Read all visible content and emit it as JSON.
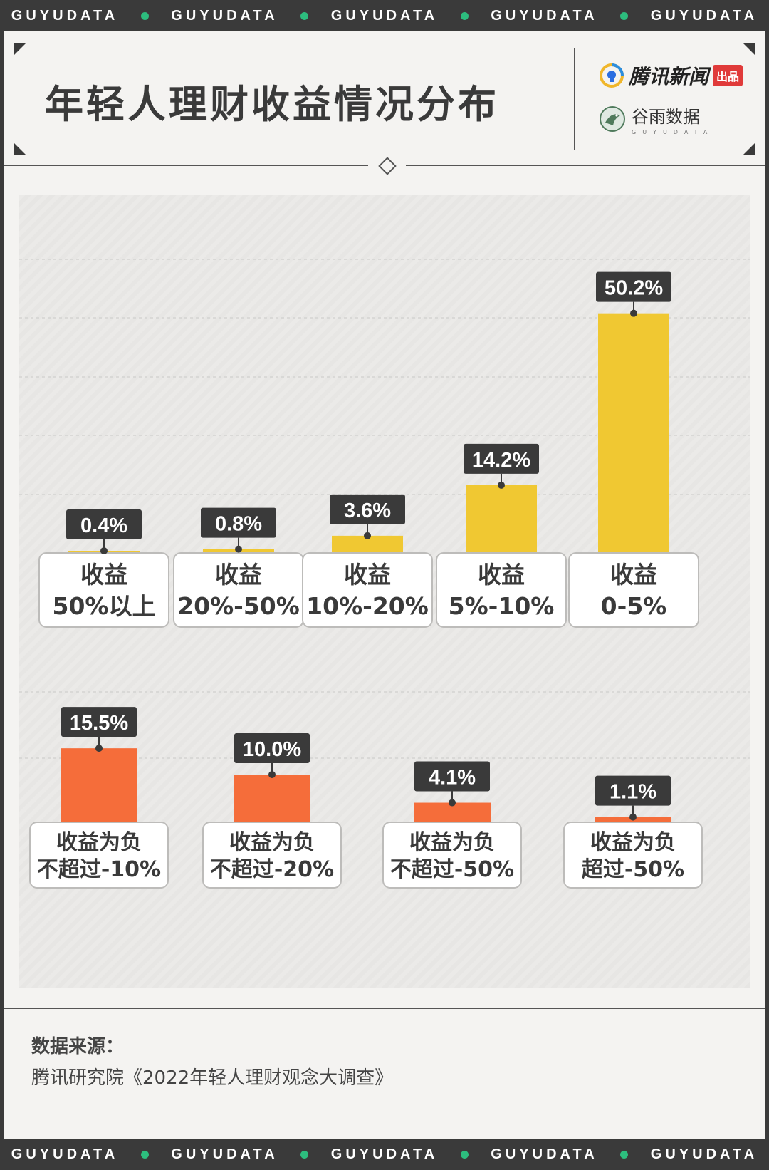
{
  "ticker": {
    "word": "GUYUDATA",
    "repeat": 5
  },
  "header": {
    "title": "年轻人理财收益情况分布",
    "logo_tencent": "腾讯新闻",
    "logo_tencent_badge": "出品",
    "logo_guyu": "谷雨数据",
    "logo_guyu_sub": "GUYUDATA"
  },
  "colors": {
    "positive": "#f0c832",
    "negative": "#f56d3a",
    "label_bg": "#3a3a3a",
    "label_text": "#ffffff",
    "frame": "#3a3a3a",
    "ticker_dot": "#2dbd7e"
  },
  "chart_data": [
    {
      "type": "bar",
      "categories": [
        "收益\n50%以上",
        "收益\n20%-50%",
        "收益\n10%-20%",
        "收益\n5%-10%",
        "收益\n0-5%"
      ],
      "values": [
        0.4,
        0.8,
        3.6,
        14.2,
        50.2
      ],
      "value_labels": [
        "0.4%",
        "0.8%",
        "3.6%",
        "14.2%",
        "50.2%"
      ],
      "color": "#f0c832"
    },
    {
      "type": "bar",
      "categories": [
        "收益为负\n不超过-10%",
        "收益为负\n不超过-20%",
        "收益为负\n不超过-50%",
        "收益为负\n超过-50%"
      ],
      "values": [
        15.5,
        10.0,
        4.1,
        1.1
      ],
      "value_labels": [
        "15.5%",
        "10.0%",
        "4.1%",
        "1.1%"
      ],
      "color": "#f56d3a"
    }
  ],
  "source": {
    "title": "数据来源：",
    "text": "腾讯研究院《2022年轻人理财观念大调查》"
  }
}
